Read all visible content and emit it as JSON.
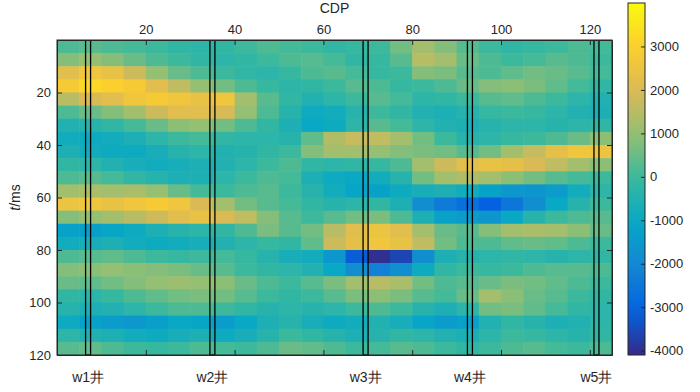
{
  "chart_data": {
    "type": "heatmap",
    "x_label": "CDP",
    "y_label": "t/ms",
    "x": [
      2.5,
      7.5,
      12.5,
      17.5,
      22.5,
      27.5,
      32.5,
      37.5,
      42.5,
      47.5,
      52.5,
      57.5,
      62.5,
      67.5,
      72.5,
      77.5,
      82.5,
      87.5,
      92.5,
      97.5,
      102.5,
      107.5,
      112.5,
      117.5,
      122.5
    ],
    "y": [
      2.5,
      7.5,
      12.5,
      17.5,
      22.5,
      27.5,
      32.5,
      37.5,
      42.5,
      47.5,
      52.5,
      57.5,
      62.5,
      67.5,
      72.5,
      77.5,
      82.5,
      87.5,
      92.5,
      97.5,
      102.5,
      107.5,
      112.5,
      117.5
    ],
    "z": [
      [
        200,
        300,
        200,
        100,
        0,
        -200,
        -300,
        -200,
        0,
        200,
        100,
        0,
        -200,
        -100,
        0,
        600,
        1200,
        800,
        300,
        0,
        -200,
        -100,
        0,
        200,
        100
      ],
      [
        800,
        1000,
        800,
        500,
        200,
        0,
        -200,
        -300,
        -200,
        0,
        200,
        300,
        100,
        -200,
        -100,
        300,
        1500,
        1200,
        500,
        200,
        0,
        100,
        300,
        200,
        0
      ],
      [
        2200,
        2600,
        2400,
        1800,
        1000,
        500,
        200,
        0,
        -200,
        -300,
        -100,
        200,
        300,
        100,
        -100,
        0,
        800,
        700,
        300,
        200,
        400,
        600,
        500,
        300,
        100
      ],
      [
        2800,
        3200,
        3000,
        2800,
        2200,
        1600,
        1000,
        600,
        200,
        -100,
        -300,
        -200,
        0,
        300,
        200,
        -100,
        0,
        200,
        500,
        800,
        900,
        700,
        400,
        100,
        -200
      ],
      [
        1500,
        2000,
        2200,
        2600,
        2800,
        2600,
        2400,
        2600,
        1200,
        300,
        -200,
        -500,
        -300,
        0,
        300,
        100,
        -300,
        -200,
        0,
        300,
        400,
        200,
        0,
        -300,
        -500
      ],
      [
        200,
        500,
        800,
        1200,
        1800,
        2200,
        2200,
        2000,
        1000,
        200,
        -400,
        -900,
        -800,
        -400,
        0,
        -200,
        -500,
        -600,
        -400,
        -100,
        0,
        -100,
        -300,
        -500,
        -600
      ],
      [
        -500,
        -400,
        -200,
        100,
        500,
        900,
        1000,
        600,
        200,
        -200,
        -600,
        -1000,
        -900,
        -300,
        300,
        100,
        -300,
        -500,
        -600,
        -400,
        -300,
        -300,
        -400,
        -300,
        -200
      ],
      [
        -800,
        -900,
        -800,
        -600,
        -300,
        0,
        100,
        -200,
        -300,
        -300,
        -400,
        400,
        1400,
        1700,
        1600,
        1200,
        600,
        0,
        -400,
        -300,
        -100,
        0,
        200,
        500,
        900
      ],
      [
        -600,
        -800,
        -900,
        -900,
        -700,
        -400,
        -300,
        -500,
        -400,
        -200,
        0,
        800,
        1200,
        1200,
        1000,
        800,
        700,
        600,
        300,
        600,
        1200,
        1700,
        2300,
        2600,
        2500
      ],
      [
        -200,
        -300,
        -500,
        -700,
        -800,
        -700,
        -600,
        -500,
        -300,
        0,
        200,
        -200,
        -300,
        -200,
        -100,
        200,
        1200,
        1800,
        2200,
        2400,
        2300,
        2000,
        1600,
        1200,
        900
      ],
      [
        200,
        300,
        100,
        -200,
        -400,
        -600,
        -600,
        -300,
        0,
        200,
        100,
        -600,
        -900,
        -1000,
        -800,
        -400,
        600,
        1200,
        1400,
        1200,
        900,
        600,
        300,
        100,
        0
      ],
      [
        1200,
        1300,
        1200,
        1300,
        1000,
        500,
        100,
        0,
        200,
        300,
        0,
        -400,
        -800,
        -1100,
        -1200,
        -900,
        -700,
        -600,
        -800,
        -1200,
        -1500,
        -1600,
        -1400,
        -800,
        -300
      ],
      [
        2500,
        2600,
        2400,
        2600,
        2800,
        2600,
        2000,
        1200,
        600,
        300,
        100,
        -200,
        -400,
        -300,
        -200,
        -600,
        -1800,
        -2400,
        -2700,
        -3100,
        -2500,
        -1800,
        -1000,
        -400,
        0
      ],
      [
        800,
        1000,
        1200,
        1500,
        1800,
        2200,
        2400,
        2000,
        1600,
        800,
        300,
        0,
        300,
        600,
        700,
        200,
        -600,
        -1200,
        -1400,
        -1600,
        -1000,
        -400,
        0,
        200,
        300
      ],
      [
        -1200,
        -1300,
        -1100,
        -900,
        -600,
        -400,
        -300,
        -200,
        200,
        700,
        300,
        600,
        1500,
        2200,
        2500,
        2200,
        1200,
        500,
        300,
        800,
        1200,
        1300,
        1200,
        900,
        500
      ],
      [
        -800,
        -700,
        -600,
        -800,
        -900,
        -800,
        -700,
        -500,
        -300,
        -100,
        -200,
        400,
        1800,
        2300,
        2600,
        2400,
        1600,
        600,
        200,
        200,
        400,
        500,
        400,
        200,
        0
      ],
      [
        200,
        300,
        400,
        200,
        0,
        -100,
        0,
        100,
        -100,
        -400,
        -700,
        -800,
        -1500,
        -3200,
        -4000,
        -3600,
        -1800,
        -600,
        -400,
        -300,
        -200,
        -300,
        -400,
        -300,
        -200
      ],
      [
        800,
        900,
        1000,
        900,
        800,
        700,
        500,
        300,
        0,
        -200,
        -300,
        -500,
        -1000,
        -1800,
        -2200,
        -1800,
        -900,
        -200,
        0,
        -100,
        0,
        200,
        300,
        300,
        200
      ],
      [
        500,
        400,
        600,
        800,
        1000,
        1100,
        1000,
        900,
        500,
        200,
        0,
        300,
        700,
        1200,
        1500,
        1300,
        600,
        200,
        300,
        500,
        700,
        600,
        400,
        200,
        0
      ],
      [
        -200,
        -300,
        -100,
        200,
        400,
        600,
        700,
        600,
        300,
        0,
        -200,
        0,
        300,
        700,
        900,
        700,
        300,
        100,
        500,
        1200,
        900,
        500,
        300,
        0,
        -200
      ],
      [
        -400,
        -600,
        -500,
        -300,
        0,
        200,
        200,
        0,
        -200,
        -400,
        -300,
        -400,
        -300,
        0,
        200,
        0,
        -400,
        -600,
        -300,
        600,
        700,
        400,
        100,
        -200,
        -300
      ],
      [
        -900,
        -1200,
        -1400,
        -1500,
        -1300,
        -1000,
        -1100,
        -1400,
        -1000,
        -600,
        -400,
        -700,
        -900,
        -800,
        -500,
        -700,
        -1100,
        -1400,
        -1200,
        -500,
        -200,
        -400,
        -600,
        -500,
        -300
      ],
      [
        -300,
        -500,
        -600,
        -800,
        -900,
        -700,
        -600,
        -900,
        -700,
        -400,
        0,
        -200,
        -400,
        -600,
        -400,
        -200,
        -300,
        -500,
        -600,
        -300,
        0,
        -100,
        -300,
        -400,
        -200
      ],
      [
        300,
        400,
        200,
        0,
        -100,
        0,
        200,
        100,
        0,
        200,
        500,
        400,
        200,
        0,
        100,
        300,
        200,
        0,
        -200,
        0,
        200,
        300,
        100,
        0,
        200
      ]
    ],
    "xlim": [
      0,
      125
    ],
    "xticks": [
      20,
      40,
      60,
      80,
      100,
      120
    ],
    "ylim": [
      0,
      120
    ],
    "yticks": [
      20,
      40,
      60,
      80,
      100,
      120
    ],
    "colorbar": {
      "range": [
        -4100,
        4000
      ],
      "ticks": [
        -4000,
        -3000,
        -2000,
        -1000,
        0,
        1000,
        2000,
        3000
      ]
    },
    "wells": [
      {
        "name": "w1井",
        "cdp": 7
      },
      {
        "name": "w2井",
        "cdp": 35
      },
      {
        "name": "w3井",
        "cdp": 69.5
      },
      {
        "name": "w4井",
        "cdp": 93
      },
      {
        "name": "w5井",
        "cdp": 121.5
      }
    ]
  }
}
